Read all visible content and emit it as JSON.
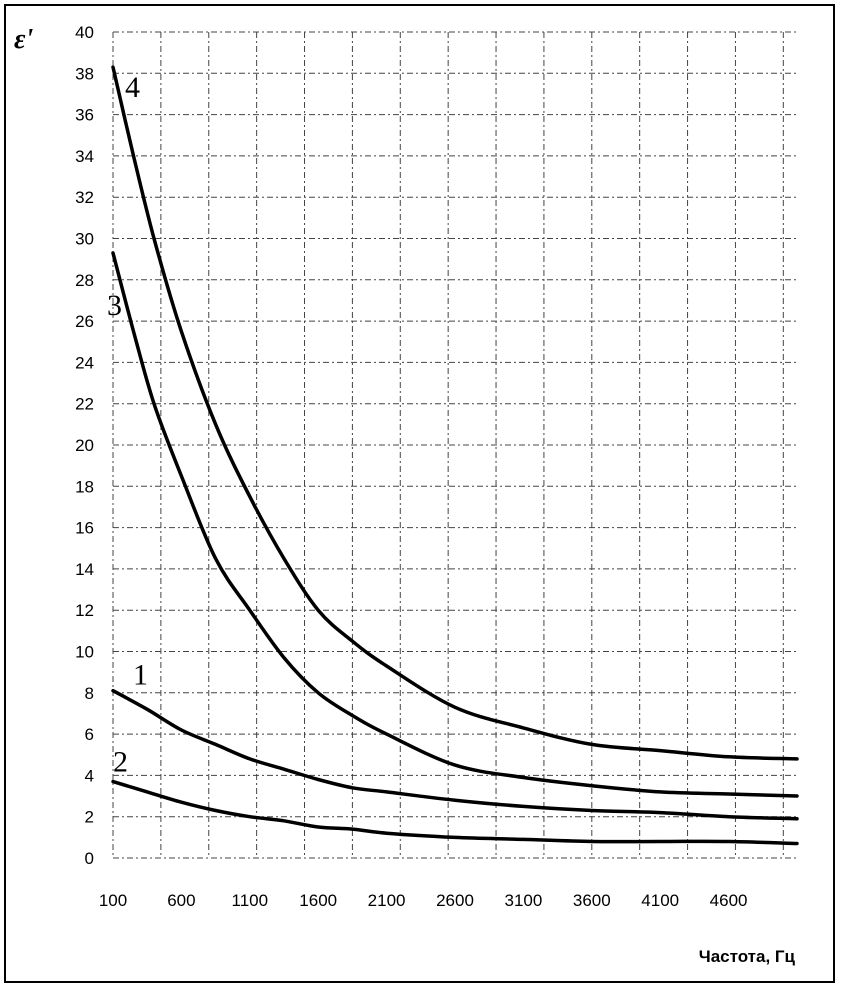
{
  "chart_data": {
    "type": "line",
    "title": "",
    "xlabel": "Частота, Гц",
    "ylabel": "ε'",
    "xlim": [
      100,
      5100
    ],
    "ylim": [
      0,
      40
    ],
    "grid": true,
    "x_ticks": [
      "100",
      "600",
      "1100",
      "1600",
      "2100",
      "2600",
      "3100",
      "3600",
      "4100",
      "4600"
    ],
    "y_ticks": [
      "0",
      "2",
      "4",
      "6",
      "8",
      "10",
      "12",
      "14",
      "16",
      "18",
      "20",
      "22",
      "24",
      "26",
      "28",
      "30",
      "32",
      "34",
      "36",
      "38",
      "40"
    ],
    "series": [
      {
        "name": "1",
        "x": [
          100,
          350,
          600,
          850,
          1100,
          1350,
          1600,
          1850,
          2100,
          2600,
          3100,
          3600,
          4100,
          4600,
          5100
        ],
        "values": [
          8.1,
          7.2,
          6.2,
          5.5,
          4.8,
          4.3,
          3.8,
          3.4,
          3.2,
          2.8,
          2.5,
          2.3,
          2.2,
          2.0,
          1.9
        ]
      },
      {
        "name": "2",
        "x": [
          100,
          350,
          600,
          850,
          1100,
          1350,
          1600,
          1850,
          2100,
          2600,
          3100,
          3600,
          4100,
          4600,
          5100
        ],
        "values": [
          3.7,
          3.2,
          2.7,
          2.3,
          2.0,
          1.8,
          1.5,
          1.4,
          1.2,
          1.0,
          0.9,
          0.8,
          0.8,
          0.8,
          0.7
        ]
      },
      {
        "name": "3",
        "x": [
          100,
          250,
          400,
          600,
          850,
          1100,
          1350,
          1600,
          1850,
          2100,
          2600,
          3100,
          3600,
          4100,
          4600,
          5100
        ],
        "values": [
          29.3,
          25.5,
          22.0,
          18.5,
          14.5,
          12.0,
          9.7,
          8.0,
          6.9,
          6.0,
          4.5,
          3.9,
          3.5,
          3.2,
          3.1,
          3.0
        ]
      },
      {
        "name": "4",
        "x": [
          100,
          250,
          400,
          600,
          850,
          1100,
          1350,
          1600,
          1850,
          2100,
          2600,
          3100,
          3600,
          4100,
          4600,
          5100
        ],
        "values": [
          38.3,
          34.0,
          30.0,
          25.5,
          21.0,
          17.5,
          14.5,
          12.0,
          10.5,
          9.3,
          7.3,
          6.3,
          5.5,
          5.2,
          4.9,
          4.8
        ]
      }
    ]
  }
}
